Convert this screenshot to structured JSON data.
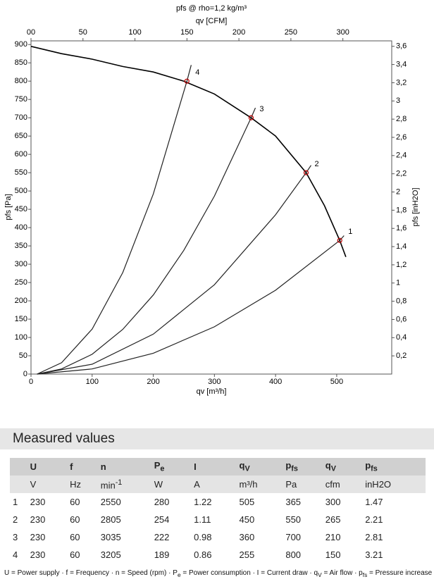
{
  "chart_data": {
    "type": "line",
    "title": "pfs @ rho=1,2 kg/m³",
    "x_label": "qv [m³/h]",
    "x2_label": "qv [CFM]",
    "y_label": "pfs [Pa]",
    "y2_label": "pfs [inH2O]",
    "xlim": [
      0,
      590
    ],
    "xticks": [
      0,
      100,
      200,
      300,
      400,
      500
    ],
    "x2lim": [
      0,
      347
    ],
    "x2ticks": [
      {
        "value": 0,
        "label": "00"
      },
      50,
      100,
      150,
      200,
      250,
      300
    ],
    "ylim": [
      0,
      910
    ],
    "yticks": [
      0,
      50,
      100,
      150,
      200,
      250,
      300,
      350,
      400,
      450,
      500,
      550,
      600,
      650,
      700,
      750,
      800,
      850,
      900
    ],
    "y2lim": [
      0,
      3.66
    ],
    "y2ticks": [
      {
        "value": 0.2,
        "label": "0,2"
      },
      {
        "value": 0.4,
        "label": "0,4"
      },
      {
        "value": 0.6,
        "label": "0,6"
      },
      {
        "value": 0.8,
        "label": "0,8"
      },
      1,
      {
        "value": 1.2,
        "label": "1,2"
      },
      {
        "value": 1.4,
        "label": "1,4"
      },
      {
        "value": 1.6,
        "label": "1,6"
      },
      {
        "value": 1.8,
        "label": "1,8"
      },
      2,
      {
        "value": 2.2,
        "label": "2,2"
      },
      {
        "value": 2.4,
        "label": "2,4"
      },
      {
        "value": 2.6,
        "label": "2,6"
      },
      {
        "value": 2.8,
        "label": "2,8"
      },
      3,
      {
        "value": 3.2,
        "label": "3,2"
      },
      {
        "value": 3.4,
        "label": "3,4"
      },
      {
        "value": 3.6,
        "label": "3,6"
      }
    ],
    "series": [
      {
        "color": "#000000",
        "x": [
          0,
          50,
          100,
          150,
          200,
          250,
          300,
          360,
          400,
          450,
          480,
          505,
          515
        ],
        "values": [
          895,
          875,
          860,
          840,
          825,
          800,
          765,
          700,
          650,
          550,
          460,
          365,
          320
        ]
      },
      {
        "color": "#222222",
        "x": [
          10,
          50,
          100,
          150,
          200,
          255,
          262
        ],
        "values": [
          0,
          31,
          123,
          277,
          492,
          800,
          844
        ]
      },
      {
        "color": "#222222",
        "x": [
          10,
          50,
          100,
          150,
          200,
          250,
          300,
          360,
          367
        ],
        "values": [
          0,
          14,
          54,
          122,
          216,
          338,
          486,
          700,
          727
        ]
      },
      {
        "color": "#222222",
        "x": [
          10,
          100,
          200,
          300,
          400,
          450,
          458
        ],
        "values": [
          0,
          27,
          109,
          244,
          435,
          550,
          570
        ]
      },
      {
        "color": "#222222",
        "x": [
          10,
          100,
          200,
          300,
          400,
          505,
          512
        ],
        "values": [
          0,
          14,
          57,
          129,
          229,
          365,
          378
        ]
      }
    ],
    "points": {
      "color": "#c00000",
      "x": [
        505,
        450,
        360,
        255
      ],
      "values": [
        365,
        550,
        700,
        800
      ],
      "labels": [
        "1",
        "2",
        "3",
        "4"
      ]
    }
  },
  "section_title": "Measured values",
  "table": {
    "header": [
      {
        "main": "U"
      },
      {
        "main": "f"
      },
      {
        "main": "n"
      },
      {
        "main": "P",
        "sub": "e"
      },
      {
        "main": "I"
      },
      {
        "main": "q",
        "sub": "V"
      },
      {
        "main": "p",
        "sub": "fs"
      },
      {
        "main": "q",
        "sub": "V"
      },
      {
        "main": "p",
        "sub": "fs"
      }
    ],
    "units": [
      {
        "main": "V"
      },
      {
        "main": "Hz"
      },
      {
        "main": "min",
        "sup": "-1"
      },
      {
        "main": "W"
      },
      {
        "main": "A"
      },
      {
        "main": "m³/h"
      },
      {
        "main": "Pa"
      },
      {
        "main": "cfm"
      },
      {
        "main": "inH2O"
      }
    ],
    "rows": [
      [
        1,
        230,
        60,
        2550,
        280,
        1.22,
        505,
        365,
        300,
        1.47
      ],
      [
        2,
        230,
        60,
        2805,
        254,
        1.11,
        450,
        550,
        265,
        2.21
      ],
      [
        3,
        230,
        60,
        3035,
        222,
        0.98,
        360,
        700,
        210,
        2.81
      ],
      [
        4,
        230,
        60,
        3205,
        189,
        0.86,
        255,
        800,
        150,
        3.21
      ]
    ]
  },
  "footnote": [
    {
      "text": "U = Power supply · f = Frequency · n = Speed (rpm) · P",
      "sub": "e"
    },
    {
      "text": " = Power consumption · I = Current draw · q",
      "sub": "V"
    },
    {
      "text": " = Air flow · p",
      "sub": "fs"
    },
    {
      "text": " = Pressure increase"
    }
  ]
}
